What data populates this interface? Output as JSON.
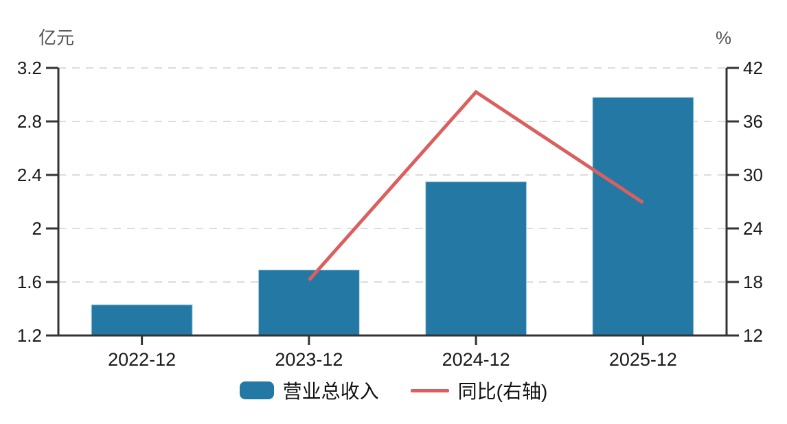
{
  "chart_data": {
    "type": "bar+line-dual-axis",
    "categories": [
      "2022-12",
      "2023-12",
      "2024-12",
      "2025-12"
    ],
    "series": [
      {
        "name": "营业总收入",
        "type": "bar",
        "axis": "left",
        "color": "#2478A4",
        "values": [
          1.43,
          1.69,
          2.35,
          2.98
        ]
      },
      {
        "name": "同比(右轴)",
        "type": "line",
        "axis": "right",
        "color": "#DC5F5F",
        "values": [
          null,
          18.2,
          39.3,
          26.9
        ]
      }
    ],
    "left_axis": {
      "title": "亿元",
      "min": 1.2,
      "max": 3.2,
      "ticks": [
        1.2,
        1.6,
        2,
        2.4,
        2.8,
        3.2
      ],
      "tick_labels": [
        "1.2",
        "1.6",
        "2",
        "2.4",
        "2.8",
        "3.2"
      ]
    },
    "right_axis": {
      "title": "%",
      "min": 12,
      "max": 42,
      "ticks": [
        12,
        18,
        24,
        30,
        36,
        42
      ],
      "tick_labels": [
        "12",
        "18",
        "24",
        "30",
        "36",
        "42"
      ]
    },
    "grid": true,
    "legend_position": "bottom",
    "colors": {
      "axis": "#333333",
      "gridline": "#DCDCDC",
      "tick_text": "#1A1A1A",
      "unit_text": "#555555",
      "bar_edge": "#BBD9E8"
    }
  }
}
